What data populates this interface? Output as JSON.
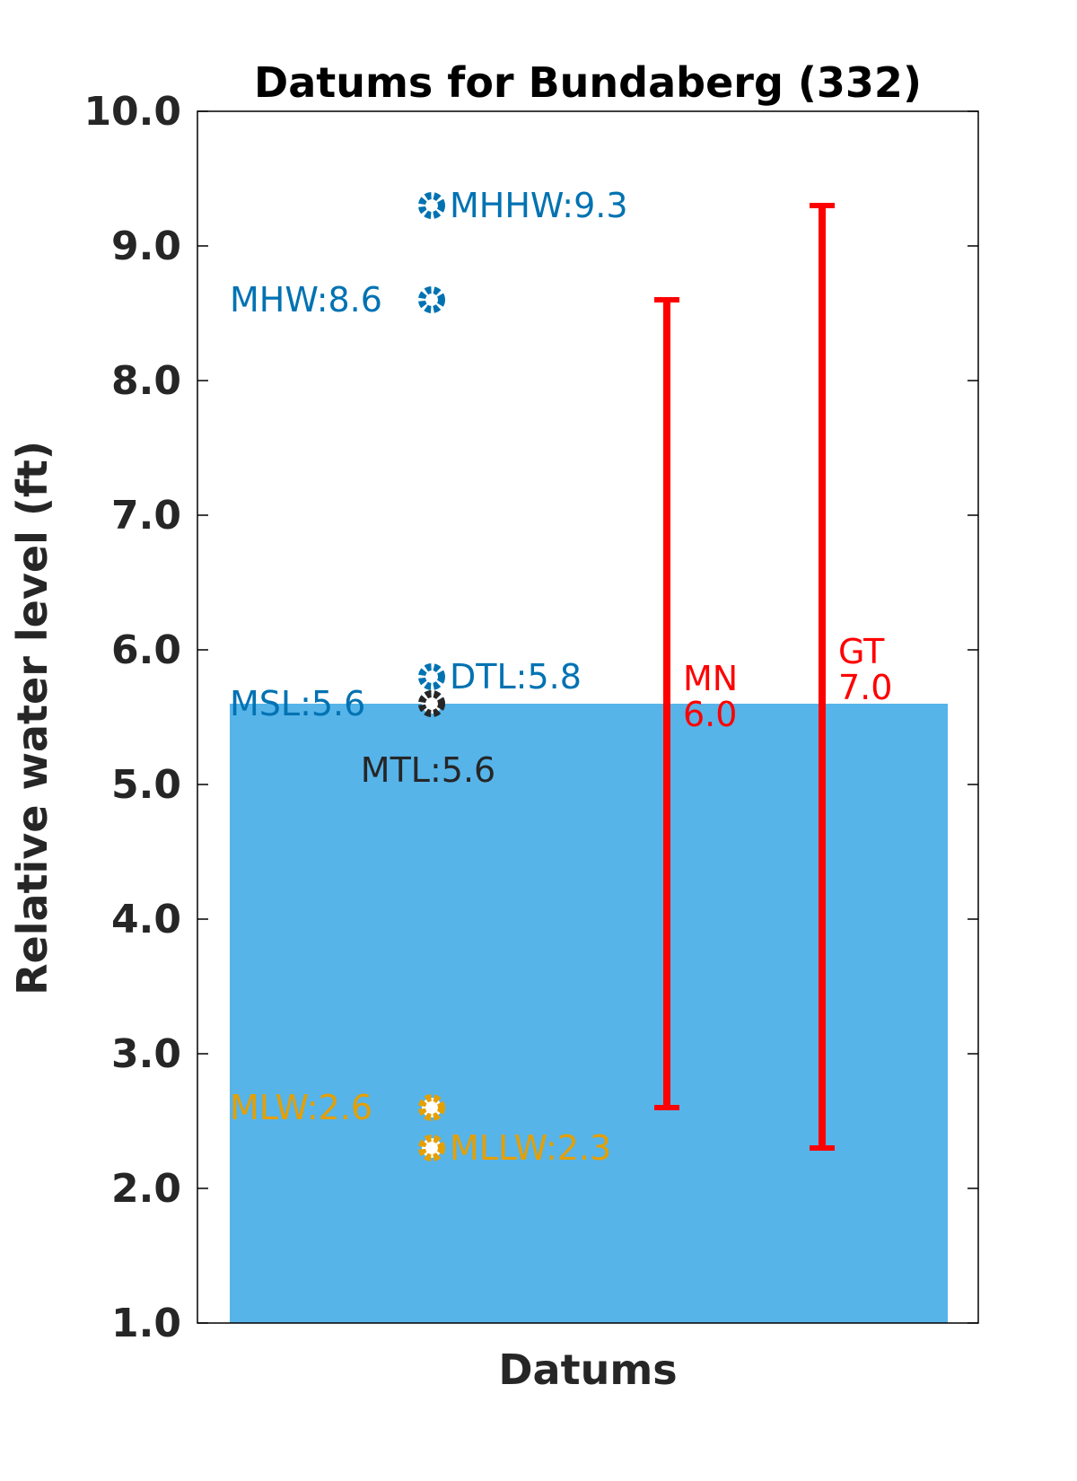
{
  "chart_data": {
    "type": "scatter",
    "title": "Datums for Bundaberg (332)",
    "xlabel": "Datums",
    "ylabel": "Relative water level (ft)",
    "ylim": [
      1.0,
      10.0
    ],
    "yticks": [
      "1.0",
      "2.0",
      "3.0",
      "4.0",
      "5.0",
      "6.0",
      "7.0",
      "8.0",
      "9.0",
      "10.0"
    ],
    "grid": false,
    "water_fill": {
      "from": 1.0,
      "to": 5.6,
      "color": "#56B4E9"
    },
    "datums": [
      {
        "name": "MHHW",
        "value": 9.3,
        "label": "MHHW:9.3",
        "color": "#0072B2",
        "label_side": "right"
      },
      {
        "name": "MHW",
        "value": 8.6,
        "label": "MHW:8.6",
        "color": "#0072B2",
        "label_side": "left"
      },
      {
        "name": "DTL",
        "value": 5.8,
        "label": "DTL:5.8",
        "color": "#0072B2",
        "label_side": "right"
      },
      {
        "name": "MSL",
        "value": 5.6,
        "label": "MSL:5.6",
        "color": "#0072B2",
        "label_side": "left"
      },
      {
        "name": "MTL",
        "value": 5.6,
        "label": "MTL:5.6",
        "color": "#262626",
        "label_side": "below"
      },
      {
        "name": "MLW",
        "value": 2.6,
        "label": "MLW:2.6",
        "color": "#E69F00",
        "label_side": "left"
      },
      {
        "name": "MLLW",
        "value": 2.3,
        "label": "MLLW:2.3",
        "color": "#E69F00",
        "label_side": "right"
      }
    ],
    "ranges": [
      {
        "name": "MN",
        "value": "6.0",
        "from": 2.6,
        "to": 8.6,
        "color": "#FF0000"
      },
      {
        "name": "GT",
        "value": "7.0",
        "from": 2.3,
        "to": 9.3,
        "color": "#FF0000"
      }
    ]
  }
}
